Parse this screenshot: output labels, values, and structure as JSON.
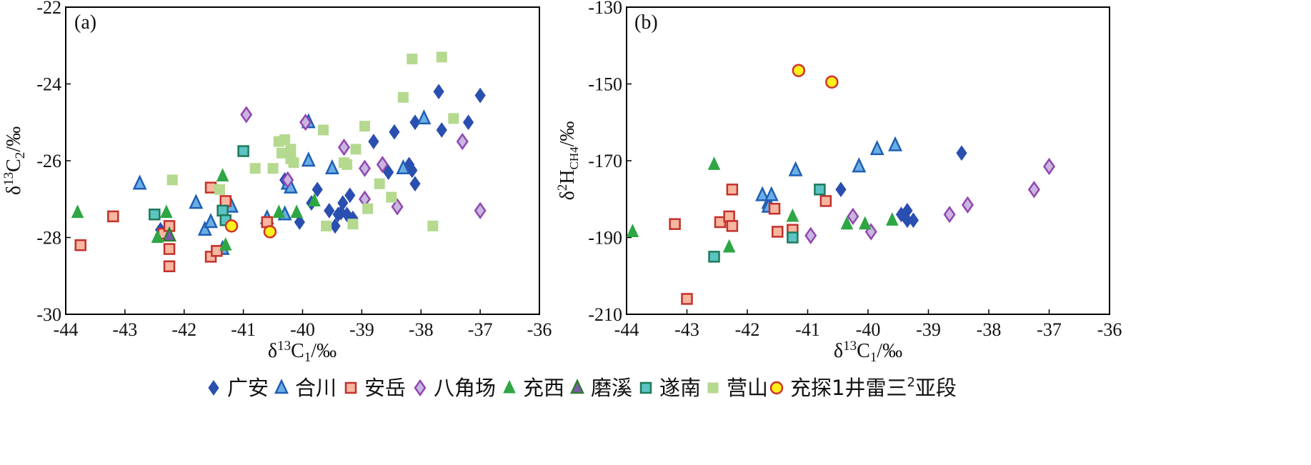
{
  "colors": {
    "guangan": "#2a4fb0",
    "hechuan_fill": "#6aaee6",
    "hechuan_edge": "#1f5fb5",
    "anyue_fill": "#f6b6a0",
    "anyue_edge": "#c4302b",
    "bajiaochang_fill": "#c9b6e0",
    "bajiaochang_edge": "#9146b0",
    "nanxi": "#2ea644",
    "moxi_fill": "#7a5aa8",
    "moxi_edge": "#2e7d32",
    "suinan_fill": "#5cc3c3",
    "suinan_edge": "#1f7a5a",
    "yingshan": "#b5d98f",
    "well_fill": "#ffef1a",
    "well_edge": "#d2322b"
  },
  "legend": {
    "guangan": "广安",
    "hechuan": "合川",
    "anyue": "安岳",
    "bajiaochang": "八角场",
    "nanxi": "充西",
    "moxi": "磨溪",
    "suinan": "遂南",
    "yingshan": "营山",
    "well": "充探1井雷三",
    "well_sup": "2",
    "well_suffix": "亚段"
  },
  "chart_data": [
    {
      "type": "scatter",
      "panel_label": "(a)",
      "xlabel": {
        "base": "δ",
        "sup": "13",
        "main": "C",
        "sub": "1",
        "unit": "/‰"
      },
      "ylabel": {
        "base": "δ",
        "sup": "13",
        "main": "C",
        "sub": "2",
        "unit": "/‰"
      },
      "xlim": [
        -44,
        -36
      ],
      "ylim": [
        -30,
        -22
      ],
      "xticks": [
        "-44",
        "-43",
        "-42",
        "-41",
        "-40",
        "-39",
        "-38",
        "-37",
        "-36"
      ],
      "yticks": [
        "-30",
        "-28",
        "-26",
        "-24",
        "-22"
      ],
      "xtick_values": [
        -44,
        -43,
        -42,
        -41,
        -40,
        -39,
        -38,
        -37,
        -36
      ],
      "ytick_values": [
        -30,
        -28,
        -26,
        -24,
        -22
      ],
      "series": [
        {
          "name": "广安",
          "marker": "diamond",
          "points": [
            [
              -42.4,
              -27.8
            ],
            [
              -40.3,
              -26.5
            ],
            [
              -40.05,
              -27.6
            ],
            [
              -39.85,
              -27.1
            ],
            [
              -39.75,
              -26.75
            ],
            [
              -39.55,
              -27.3
            ],
            [
              -39.45,
              -27.7
            ],
            [
              -39.4,
              -27.4
            ],
            [
              -39.35,
              -27.35
            ],
            [
              -39.32,
              -27.1
            ],
            [
              -39.25,
              -27.4
            ],
            [
              -39.2,
              -26.9
            ],
            [
              -39.15,
              -27.5
            ],
            [
              -38.8,
              -25.5
            ],
            [
              -38.55,
              -26.3
            ],
            [
              -38.45,
              -25.25
            ],
            [
              -38.2,
              -26.1
            ],
            [
              -38.15,
              -26.25
            ],
            [
              -38.1,
              -26.6
            ],
            [
              -38.1,
              -25.0
            ],
            [
              -37.7,
              -24.2
            ],
            [
              -37.65,
              -25.2
            ],
            [
              -37.2,
              -25.0
            ],
            [
              -37.0,
              -24.3
            ]
          ]
        },
        {
          "name": "合川",
          "marker": "triangle",
          "points": [
            [
              -42.75,
              -26.6
            ],
            [
              -41.8,
              -27.1
            ],
            [
              -41.65,
              -27.8
            ],
            [
              -41.55,
              -27.6
            ],
            [
              -41.35,
              -28.3
            ],
            [
              -41.2,
              -27.2
            ],
            [
              -40.6,
              -27.5
            ],
            [
              -40.3,
              -27.4
            ],
            [
              -40.25,
              -26.6
            ],
            [
              -40.2,
              -26.7
            ],
            [
              -39.9,
              -26.0
            ],
            [
              -39.9,
              -25.0
            ],
            [
              -39.5,
              -26.2
            ],
            [
              -38.3,
              -26.2
            ],
            [
              -37.95,
              -24.9
            ]
          ]
        },
        {
          "name": "安岳",
          "marker": "square",
          "points": [
            [
              -43.75,
              -28.2
            ],
            [
              -43.2,
              -27.45
            ],
            [
              -42.35,
              -27.9
            ],
            [
              -42.25,
              -27.7
            ],
            [
              -42.25,
              -28.3
            ],
            [
              -42.25,
              -28.75
            ],
            [
              -41.55,
              -26.7
            ],
            [
              -41.55,
              -28.5
            ],
            [
              -41.45,
              -28.35
            ],
            [
              -41.3,
              -27.05
            ],
            [
              -40.6,
              -27.6
            ]
          ]
        },
        {
          "name": "八角场",
          "marker": "diamond",
          "points": [
            [
              -40.95,
              -24.8
            ],
            [
              -40.25,
              -26.5
            ],
            [
              -39.95,
              -25.0
            ],
            [
              -39.3,
              -25.65
            ],
            [
              -38.95,
              -26.2
            ],
            [
              -38.95,
              -27.0
            ],
            [
              -38.65,
              -26.1
            ],
            [
              -38.4,
              -27.2
            ],
            [
              -37.3,
              -25.5
            ],
            [
              -37.0,
              -27.3
            ]
          ]
        },
        {
          "name": "充西",
          "marker": "triangle",
          "points": [
            [
              -43.8,
              -27.35
            ],
            [
              -42.45,
              -28.0
            ],
            [
              -42.3,
              -27.35
            ],
            [
              -41.35,
              -26.4
            ],
            [
              -41.3,
              -28.2
            ],
            [
              -40.4,
              -27.35
            ],
            [
              -40.1,
              -27.35
            ],
            [
              -39.8,
              -27.05
            ]
          ]
        },
        {
          "name": "磨溪",
          "marker": "triangle",
          "points": [
            [
              -42.25,
              -27.95
            ]
          ]
        },
        {
          "name": "遂南",
          "marker": "square",
          "points": [
            [
              -42.5,
              -27.4
            ],
            [
              -41.35,
              -27.3
            ],
            [
              -41.3,
              -27.55
            ],
            [
              -41.0,
              -25.75
            ]
          ]
        },
        {
          "name": "营山",
          "marker": "square",
          "points": [
            [
              -42.2,
              -26.5
            ],
            [
              -41.4,
              -26.75
            ],
            [
              -40.8,
              -26.2
            ],
            [
              -40.5,
              -26.2
            ],
            [
              -40.4,
              -25.5
            ],
            [
              -40.35,
              -25.8
            ],
            [
              -40.3,
              -25.45
            ],
            [
              -40.2,
              -25.7
            ],
            [
              -40.2,
              -25.95
            ],
            [
              -40.15,
              -26.05
            ],
            [
              -39.65,
              -25.2
            ],
            [
              -39.6,
              -27.7
            ],
            [
              -39.3,
              -26.05
            ],
            [
              -39.25,
              -26.1
            ],
            [
              -39.15,
              -27.65
            ],
            [
              -39.1,
              -25.7
            ],
            [
              -38.95,
              -25.1
            ],
            [
              -38.9,
              -27.25
            ],
            [
              -38.7,
              -26.6
            ],
            [
              -38.5,
              -26.95
            ],
            [
              -38.3,
              -24.35
            ],
            [
              -38.15,
              -23.35
            ],
            [
              -37.8,
              -27.7
            ],
            [
              -37.65,
              -23.3
            ],
            [
              -37.45,
              -24.9
            ]
          ]
        },
        {
          "name": "充探1井雷三亚段",
          "marker": "circle",
          "points": [
            [
              -41.2,
              -27.7
            ],
            [
              -40.55,
              -27.85
            ]
          ]
        }
      ]
    },
    {
      "type": "scatter",
      "panel_label": "(b)",
      "xlabel": {
        "base": "δ",
        "sup": "13",
        "main": "C",
        "sub": "1",
        "unit": "/‰"
      },
      "ylabel": {
        "base": "δ",
        "sup": "2",
        "main": "H",
        "sub": "CH4",
        "unit": "/‰"
      },
      "xlim": [
        -44,
        -36
      ],
      "ylim": [
        -210,
        -130
      ],
      "xticks": [
        "-44",
        "-43",
        "-42",
        "-41",
        "-40",
        "-39",
        "-38",
        "-37",
        "-36"
      ],
      "yticks": [
        "-210",
        "-190",
        "-170",
        "-150",
        "-130"
      ],
      "xtick_values": [
        -44,
        -43,
        -42,
        -41,
        -40,
        -39,
        -38,
        -37,
        -36
      ],
      "ytick_values": [
        -210,
        -190,
        -170,
        -150,
        -130
      ],
      "series": [
        {
          "name": "广安",
          "marker": "diamond",
          "points": [
            [
              -40.45,
              -177.5
            ],
            [
              -39.45,
              -184
            ],
            [
              -39.35,
              -183
            ],
            [
              -39.35,
              -185.5
            ],
            [
              -39.25,
              -185.5
            ],
            [
              -38.45,
              -168
            ]
          ]
        },
        {
          "name": "合川",
          "marker": "triangle",
          "points": [
            [
              -41.75,
              -179
            ],
            [
              -41.65,
              -181
            ],
            [
              -41.65,
              -182
            ],
            [
              -41.6,
              -179
            ],
            [
              -41.2,
              -172.5
            ],
            [
              -40.15,
              -171.5
            ],
            [
              -39.85,
              -167
            ],
            [
              -39.55,
              -166
            ]
          ]
        },
        {
          "name": "安岳",
          "marker": "square",
          "points": [
            [
              -43.2,
              -186.5
            ],
            [
              -43.0,
              -206
            ],
            [
              -42.45,
              -186
            ],
            [
              -42.3,
              -184.5
            ],
            [
              -42.25,
              -187
            ],
            [
              -42.25,
              -177.5
            ],
            [
              -41.55,
              -182.5
            ],
            [
              -41.5,
              -188.5
            ],
            [
              -41.25,
              -188
            ],
            [
              -40.7,
              -180.5
            ]
          ]
        },
        {
          "name": "八角场",
          "marker": "diamond",
          "points": [
            [
              -40.95,
              -189.5
            ],
            [
              -40.25,
              -184.5
            ],
            [
              -39.95,
              -188.5
            ],
            [
              -38.65,
              -184
            ],
            [
              -38.35,
              -181.5
            ],
            [
              -37.25,
              -177.5
            ],
            [
              -37.0,
              -171.5
            ]
          ]
        },
        {
          "name": "充西",
          "marker": "triangle",
          "points": [
            [
              -43.9,
              -188.5
            ],
            [
              -42.55,
              -171
            ],
            [
              -42.3,
              -192.5
            ],
            [
              -41.25,
              -184.5
            ],
            [
              -40.35,
              -186.5
            ],
            [
              -40.05,
              -186.5
            ],
            [
              -39.6,
              -185.5
            ]
          ]
        },
        {
          "name": "磨溪",
          "marker": "triangle",
          "points": []
        },
        {
          "name": "遂南",
          "marker": "square",
          "points": [
            [
              -42.55,
              -195
            ],
            [
              -41.25,
              -190
            ],
            [
              -40.8,
              -177.5
            ]
          ]
        },
        {
          "name": "营山",
          "marker": "square",
          "points": []
        },
        {
          "name": "充探1井雷三亚段",
          "marker": "circle",
          "points": [
            [
              -41.15,
              -146.5
            ],
            [
              -40.6,
              -149.5
            ]
          ]
        }
      ]
    }
  ]
}
